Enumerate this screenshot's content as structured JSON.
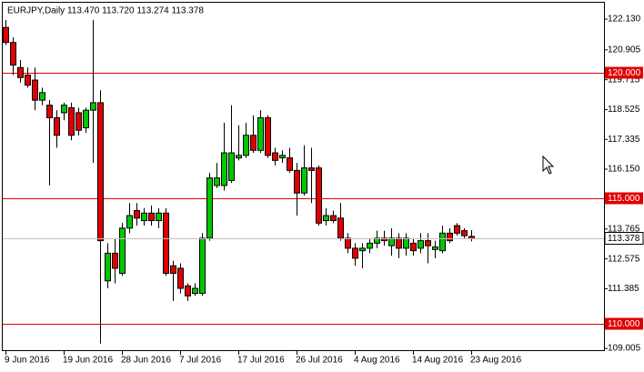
{
  "chart_data": {
    "type": "candlestick",
    "title": "EURJPY,Daily  113.470 113.720 113.274 113.378",
    "categories": [
      "9 Jun 2016",
      null,
      null,
      null,
      null,
      null,
      null,
      null,
      "19 Jun 2016",
      null,
      null,
      null,
      null,
      null,
      null,
      null,
      "28 Jun 2016",
      null,
      null,
      null,
      null,
      null,
      null,
      null,
      "7 Jul 2016",
      null,
      null,
      null,
      null,
      null,
      null,
      null,
      "17 Jul 2016",
      null,
      null,
      null,
      null,
      null,
      null,
      null,
      "26 Jul 2016",
      null,
      null,
      null,
      null,
      null,
      null,
      null,
      "4 Aug 2016",
      null,
      null,
      null,
      null,
      null,
      null,
      null,
      "14 Aug 2016",
      null,
      null,
      null,
      null,
      null,
      null,
      null,
      "23 Aug 2016"
    ],
    "open": [
      121.8,
      121.2,
      120.2,
      119.9,
      119.7,
      118.9,
      118.7,
      118.2,
      118.4,
      118.6,
      118.4,
      117.8,
      118.5,
      118.8,
      111.7,
      112.8,
      112.0,
      113.8,
      114.5,
      114.1,
      114.4,
      114.1,
      114.4,
      112.3,
      112.2,
      111.5,
      111.2,
      111.2,
      113.4,
      115.5,
      115.5,
      115.7,
      116.6,
      116.7,
      117.5,
      116.9,
      118.2,
      116.8,
      116.6,
      116.6,
      116.1,
      115.2,
      116.2,
      116.2,
      114.1,
      114.3,
      114.2,
      113.4,
      113.0,
      112.9,
      113.0,
      113.2,
      113.4,
      113.1,
      113.4,
      113.0,
      113.2,
      113.0,
      113.3,
      112.95,
      112.9,
      113.6,
      113.9,
      113.7,
      113.47
    ],
    "high": [
      122.1,
      121.4,
      120.5,
      120.2,
      120.2,
      119.4,
      118.9,
      118.5,
      118.8,
      118.8,
      118.6,
      118.6,
      122.1,
      119.3,
      113.2,
      113.4,
      114.0,
      114.8,
      114.8,
      114.6,
      114.7,
      114.6,
      114.6,
      112.5,
      112.4,
      111.6,
      111.6,
      113.6,
      116.0,
      116.4,
      118.0,
      118.7,
      117.9,
      118.0,
      118.3,
      118.5,
      118.3,
      117.0,
      116.9,
      117.0,
      116.4,
      117.1,
      117.0,
      116.3,
      114.6,
      114.5,
      114.8,
      113.6,
      113.2,
      113.2,
      113.4,
      113.7,
      113.7,
      113.8,
      113.6,
      113.6,
      113.4,
      113.6,
      113.6,
      113.3,
      113.9,
      113.8,
      114.0,
      113.8,
      113.72
    ],
    "low": [
      121.1,
      119.9,
      119.6,
      119.4,
      118.5,
      118.7,
      115.5,
      117.0,
      118.1,
      117.3,
      117.5,
      117.6,
      116.4,
      109.2,
      111.4,
      111.6,
      111.9,
      113.6,
      113.9,
      113.9,
      113.9,
      113.8,
      111.9,
      110.9,
      111.2,
      110.9,
      111.1,
      111.1,
      113.3,
      115.4,
      115.3,
      115.6,
      116.5,
      116.6,
      116.8,
      116.8,
      116.6,
      116.3,
      116.4,
      116.0,
      114.3,
      115.1,
      114.8,
      113.9,
      113.9,
      114.0,
      113.3,
      112.8,
      112.3,
      112.2,
      112.8,
      113.0,
      113.1,
      112.7,
      112.6,
      112.7,
      112.7,
      112.8,
      112.4,
      112.6,
      112.8,
      113.2,
      113.5,
      113.4,
      113.274
    ],
    "close": [
      121.2,
      120.3,
      119.8,
      119.5,
      118.9,
      119.2,
      118.2,
      117.5,
      118.7,
      117.5,
      117.7,
      118.5,
      118.8,
      113.3,
      112.8,
      112.2,
      113.8,
      114.3,
      114.2,
      114.4,
      114.1,
      114.4,
      112.0,
      112.0,
      111.4,
      111.1,
      111.4,
      113.4,
      115.8,
      115.8,
      116.8,
      116.8,
      116.7,
      117.5,
      116.9,
      118.2,
      116.7,
      116.5,
      116.7,
      116.1,
      115.2,
      116.2,
      116.1,
      114.0,
      114.3,
      114.1,
      113.4,
      113.0,
      112.6,
      113.0,
      113.2,
      113.4,
      113.3,
      113.4,
      113.0,
      113.4,
      112.9,
      113.3,
      113.1,
      113.05,
      113.6,
      113.3,
      113.6,
      113.5,
      113.378
    ],
    "up_color": "#00c800",
    "down_color": "#e00000",
    "ylim": [
      108.9,
      122.82
    ],
    "yticks": [
      {
        "value": 122.13,
        "label": "122.130"
      },
      {
        "value": 120.905,
        "label": "120.905"
      },
      {
        "value": 119.715,
        "label": "119.715"
      },
      {
        "value": 118.525,
        "label": "118.525"
      },
      {
        "value": 117.335,
        "label": "117.335"
      },
      {
        "value": 116.15,
        "label": "116.150"
      },
      {
        "value": 113.765,
        "label": "113.765"
      },
      {
        "value": 112.575,
        "label": "112.575"
      },
      {
        "value": 111.385,
        "label": "111.385"
      },
      {
        "value": 109.005,
        "label": "109.005"
      }
    ],
    "levels": [
      {
        "value": 120,
        "label": "120.000",
        "color": "#e00000"
      },
      {
        "value": 115,
        "label": "115.000",
        "color": "#e00000"
      },
      {
        "value": 110,
        "label": "110.000",
        "color": "#e00000"
      }
    ],
    "price_line": {
      "value": 113.378,
      "label": "113.378",
      "color": "#c0c0c0"
    }
  }
}
